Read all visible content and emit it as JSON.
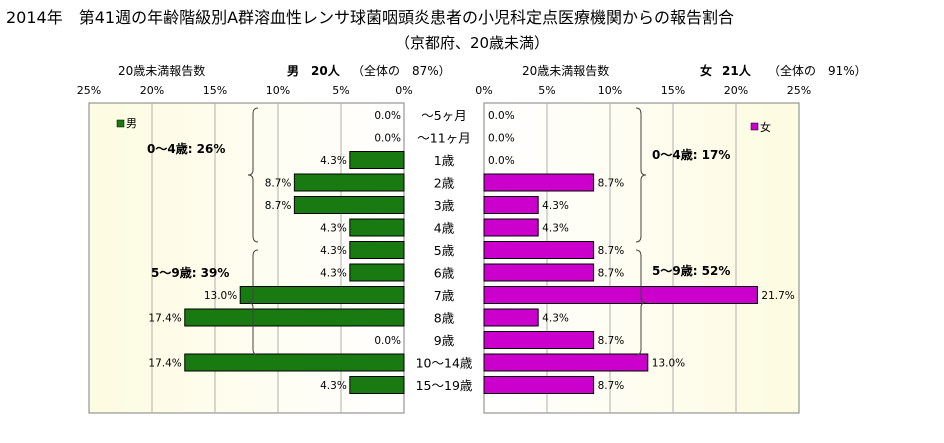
{
  "title": {
    "line1": "2014年　第41週の年齢階級別A群溶血性レンサ球菌咽頭炎患者の小児科定点医療機関からの報告割合",
    "line2": "（京都府、20歳未満）"
  },
  "left_panel": {
    "header_label": "20歳未満報告数",
    "header_sex": "男",
    "header_count": "20人",
    "header_share": "（全体の　87%）",
    "legend": "男",
    "group_labels": [
      "0～4歳: 26%",
      "5～9歳: 39%"
    ]
  },
  "right_panel": {
    "header_label": "20歳未満報告数",
    "header_sex": "女",
    "header_count": "21人",
    "header_share": "（全体の　91%）",
    "legend": "女",
    "group_labels": [
      "0～4歳: 17%",
      "5～9歳: 52%"
    ]
  },
  "colors": {
    "male": "#187a10",
    "female": "#cc00cc",
    "plot_bg": "#fdfbe0",
    "border": "#808080"
  },
  "chart_data": [
    {
      "type": "bar",
      "orientation": "horizontal",
      "direction": "right-to-left",
      "series": [
        {
          "name": "男",
          "values": [
            0.0,
            0.0,
            4.3,
            8.7,
            8.7,
            4.3,
            4.3,
            4.3,
            13.0,
            17.4,
            0.0,
            17.4,
            4.3
          ]
        }
      ],
      "value_labels": [
        "0.0%",
        "0.0%",
        "4.3%",
        "8.7%",
        "8.7%",
        "4.3%",
        "4.3%",
        "4.3%",
        "13.0%",
        "17.4%",
        "0.0%",
        "17.4%",
        "4.3%"
      ],
      "categories": [
        "～5ヶ月",
        "～11ヶ月",
        "1歳",
        "2歳",
        "3歳",
        "4歳",
        "5歳",
        "6歳",
        "7歳",
        "8歳",
        "9歳",
        "10～14歳",
        "15～19歳"
      ],
      "xlim": [
        0,
        25
      ],
      "xticks": [
        "25%",
        "20%",
        "15%",
        "10%",
        "5%",
        "0%"
      ],
      "grid": true,
      "legend": "top-left"
    },
    {
      "type": "bar",
      "orientation": "horizontal",
      "direction": "left-to-right",
      "series": [
        {
          "name": "女",
          "values": [
            0.0,
            0.0,
            0.0,
            8.7,
            4.3,
            4.3,
            8.7,
            8.7,
            21.7,
            4.3,
            8.7,
            13.0,
            8.7
          ]
        }
      ],
      "value_labels": [
        "0.0%",
        "0.0%",
        "0.0%",
        "8.7%",
        "4.3%",
        "4.3%",
        "8.7%",
        "8.7%",
        "21.7%",
        "4.3%",
        "8.7%",
        "13.0%",
        "8.7%"
      ],
      "categories": [
        "～5ヶ月",
        "～11ヶ月",
        "1歳",
        "2歳",
        "3歳",
        "4歳",
        "5歳",
        "6歳",
        "7歳",
        "8歳",
        "9歳",
        "10～14歳",
        "15～19歳"
      ],
      "xlim": [
        0,
        25
      ],
      "xticks": [
        "0%",
        "5%",
        "10%",
        "15%",
        "20%",
        "25%"
      ],
      "grid": true,
      "legend": "top-right"
    }
  ]
}
